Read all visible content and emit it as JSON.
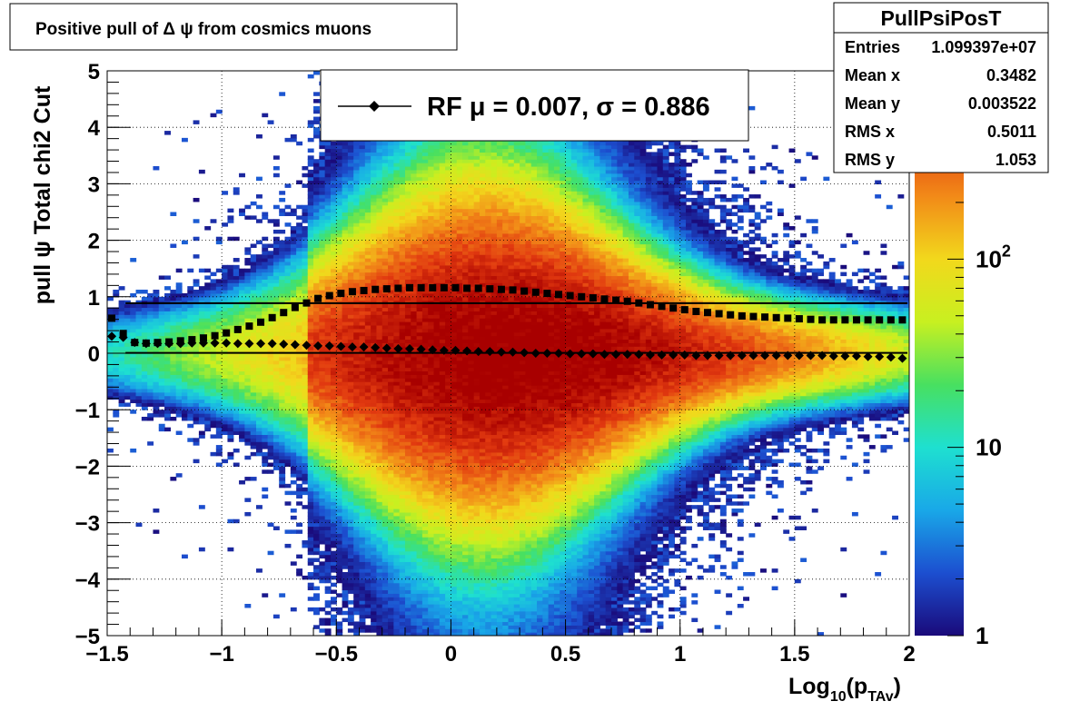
{
  "title": "Positive pull of Δ ψ from cosmics muons",
  "stats": {
    "name": "PullPsiPosT",
    "rows": [
      {
        "label": "Entries",
        "value": "1.099397e+07"
      },
      {
        "label": "Mean x",
        "value": "0.3482"
      },
      {
        "label": "Mean y",
        "value": "0.003522"
      },
      {
        "label": "RMS x",
        "value": "0.5011"
      },
      {
        "label": "RMS y",
        "value": "1.053"
      }
    ]
  },
  "legend": {
    "entry_label": "RF μ =  0.007, σ =   0.886"
  },
  "colorbar": {
    "labels": [
      {
        "text": "1",
        "value": 1
      },
      {
        "text": "10",
        "value": 10
      },
      {
        "text": "10",
        "sup": "2",
        "value": 100
      }
    ],
    "scale": "log",
    "palette": [
      "#1a0a7a",
      "#1c4fd0",
      "#19a8e8",
      "#1ee0d0",
      "#48e060",
      "#c8f020",
      "#f2d81c",
      "#f28a18",
      "#e23a10",
      "#a80000"
    ]
  },
  "chart_data": {
    "type": "heatmap",
    "title": "Positive pull of Δ ψ from cosmics muons",
    "xlabel": {
      "base": "Log",
      "sub1": "10",
      "mid": "(p",
      "sub2": "TAv",
      "end": ")"
    },
    "ylabel": "pull ψ   Total chi2 Cut",
    "xlim": [
      -1.5,
      2
    ],
    "ylim": [
      -5,
      5
    ],
    "xticks": [
      {
        "value": -1.5,
        "label": "−1.5"
      },
      {
        "value": -1,
        "label": "−1"
      },
      {
        "value": -0.5,
        "label": "−0.5"
      },
      {
        "value": 0,
        "label": "0"
      },
      {
        "value": 0.5,
        "label": "0.5"
      },
      {
        "value": 1,
        "label": "1"
      },
      {
        "value": 1.5,
        "label": "1.5"
      },
      {
        "value": 2,
        "label": "2"
      }
    ],
    "yticks": [
      {
        "value": -5,
        "label": "−5"
      },
      {
        "value": -4,
        "label": "−4"
      },
      {
        "value": -3,
        "label": "−3"
      },
      {
        "value": -2,
        "label": "−2"
      },
      {
        "value": -1,
        "label": "−1"
      },
      {
        "value": 0,
        "label": "0"
      },
      {
        "value": 1,
        "label": "1"
      },
      {
        "value": 2,
        "label": "2"
      },
      {
        "value": 3,
        "label": "3"
      },
      {
        "value": 4,
        "label": "4"
      },
      {
        "value": 5,
        "label": "5"
      }
    ],
    "grid": true,
    "color_scale": "log",
    "zlim": [
      1,
      1000
    ],
    "reference_lines": [
      {
        "y": 0.886,
        "color": "#000000"
      },
      {
        "y": 0.007,
        "color": "#000000"
      }
    ],
    "series": [
      {
        "name": "RMS",
        "marker": "square",
        "x": [
          -1.48,
          -1.43,
          -1.38,
          -1.33,
          -1.28,
          -1.23,
          -1.18,
          -1.13,
          -1.08,
          -1.03,
          -0.98,
          -0.93,
          -0.88,
          -0.83,
          -0.78,
          -0.73,
          -0.68,
          -0.63,
          -0.58,
          -0.53,
          -0.48,
          -0.43,
          -0.38,
          -0.33,
          -0.28,
          -0.23,
          -0.18,
          -0.13,
          -0.08,
          -0.03,
          0.02,
          0.07,
          0.12,
          0.17,
          0.22,
          0.27,
          0.32,
          0.37,
          0.42,
          0.47,
          0.52,
          0.57,
          0.62,
          0.67,
          0.72,
          0.77,
          0.82,
          0.87,
          0.92,
          0.97,
          1.02,
          1.07,
          1.12,
          1.17,
          1.22,
          1.27,
          1.32,
          1.37,
          1.42,
          1.47,
          1.52,
          1.57,
          1.62,
          1.67,
          1.72,
          1.77,
          1.82,
          1.87,
          1.92,
          1.97
        ],
        "y": [
          0.62,
          0.35,
          0.19,
          0.18,
          0.19,
          0.2,
          0.22,
          0.24,
          0.27,
          0.31,
          0.36,
          0.42,
          0.48,
          0.55,
          0.63,
          0.72,
          0.81,
          0.89,
          0.97,
          1.02,
          1.06,
          1.09,
          1.11,
          1.13,
          1.14,
          1.15,
          1.16,
          1.16,
          1.16,
          1.16,
          1.16,
          1.15,
          1.15,
          1.14,
          1.13,
          1.12,
          1.1,
          1.08,
          1.06,
          1.04,
          1.02,
          1.0,
          0.98,
          0.96,
          0.94,
          0.92,
          0.89,
          0.86,
          0.83,
          0.8,
          0.77,
          0.74,
          0.72,
          0.7,
          0.68,
          0.66,
          0.65,
          0.64,
          0.63,
          0.62,
          0.61,
          0.6,
          0.59,
          0.59,
          0.59,
          0.59,
          0.59,
          0.59,
          0.59,
          0.59
        ]
      },
      {
        "name": "Mean",
        "marker": "diamond",
        "x": [
          -1.48,
          -1.43,
          -1.38,
          -1.33,
          -1.28,
          -1.23,
          -1.18,
          -1.13,
          -1.08,
          -1.03,
          -0.98,
          -0.93,
          -0.88,
          -0.83,
          -0.78,
          -0.73,
          -0.68,
          -0.63,
          -0.58,
          -0.53,
          -0.48,
          -0.43,
          -0.38,
          -0.33,
          -0.28,
          -0.23,
          -0.18,
          -0.13,
          -0.08,
          -0.03,
          0.02,
          0.07,
          0.12,
          0.17,
          0.22,
          0.27,
          0.32,
          0.37,
          0.42,
          0.47,
          0.52,
          0.57,
          0.62,
          0.67,
          0.72,
          0.77,
          0.82,
          0.87,
          0.92,
          0.97,
          1.02,
          1.07,
          1.12,
          1.17,
          1.22,
          1.27,
          1.32,
          1.37,
          1.42,
          1.47,
          1.52,
          1.57,
          1.62,
          1.67,
          1.72,
          1.77,
          1.82,
          1.87,
          1.92,
          1.97
        ],
        "y": [
          0.3,
          0.28,
          0.19,
          0.17,
          0.17,
          0.17,
          0.17,
          0.18,
          0.18,
          0.18,
          0.18,
          0.17,
          0.17,
          0.17,
          0.17,
          0.16,
          0.15,
          0.14,
          0.13,
          0.13,
          0.12,
          0.11,
          0.11,
          0.1,
          0.09,
          0.08,
          0.08,
          0.07,
          0.06,
          0.05,
          0.05,
          0.04,
          0.03,
          0.03,
          0.02,
          0.02,
          0.01,
          0.0,
          0.0,
          0.0,
          -0.01,
          -0.01,
          -0.01,
          -0.02,
          -0.02,
          -0.02,
          -0.02,
          -0.03,
          -0.03,
          -0.03,
          -0.03,
          -0.04,
          -0.04,
          -0.04,
          -0.04,
          -0.04,
          -0.04,
          -0.04,
          -0.04,
          -0.04,
          -0.04,
          -0.04,
          -0.04,
          -0.05,
          -0.05,
          -0.05,
          -0.06,
          -0.06,
          -0.07,
          -0.09
        ]
      }
    ]
  }
}
